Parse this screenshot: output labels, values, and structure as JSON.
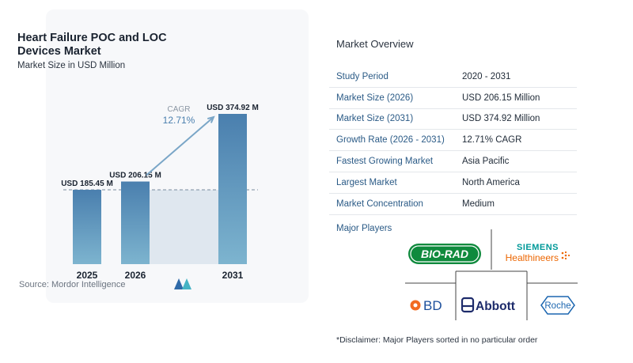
{
  "header": {
    "title": "Heart Failure POC and LOC Devices Market",
    "subtitle": "Market Size in USD Million",
    "source": "Source: Mordor Intelligence",
    "cagr_label": "CAGR",
    "cagr_value": "12.71%"
  },
  "chart_data": {
    "type": "bar",
    "title": "Heart Failure POC and LOC Devices Market",
    "subtitle": "Market Size in USD Million",
    "categories": [
      "2025",
      "2026",
      "2031"
    ],
    "values": [
      185.45,
      206.15,
      374.92
    ],
    "value_labels": [
      "USD 185.45 M",
      "USD 206.15 M",
      "USD 374.92 M"
    ],
    "ylim": [
      0,
      400
    ],
    "grid": false,
    "colors": {
      "bar_top": "#4a7fae",
      "bar_bottom": "#7db4cf",
      "band": "#dfe7ef",
      "dash": "#7a8d9e",
      "arrow": "#7aa6c7"
    }
  },
  "overview": {
    "title": "Market Overview",
    "rows": [
      {
        "key": "Study Period",
        "value": "2020 - 2031"
      },
      {
        "key": "Market Size (2026)",
        "value": "USD 206.15 Million"
      },
      {
        "key": "Market Size (2031)",
        "value": "USD 374.92 Million"
      },
      {
        "key": "Growth Rate (2026 - 2031)",
        "value": "12.71% CAGR"
      },
      {
        "key": "Fastest Growing Market",
        "value": "Asia Pacific"
      },
      {
        "key": "Largest Market",
        "value": "North America"
      },
      {
        "key": "Market Concentration",
        "value": "Medium"
      }
    ]
  },
  "players": {
    "title": "Major Players",
    "logos": [
      {
        "name": "BIO-RAD",
        "icon": "bio-rad-logo"
      },
      {
        "name": "SIEMENS",
        "sub": "Healthineers",
        "icon": "siemens-healthineers-logo"
      },
      {
        "name": "BD",
        "icon": "bd-logo"
      },
      {
        "name": "Abbott",
        "icon": "abbott-logo"
      },
      {
        "name": "Roche",
        "icon": "roche-logo"
      }
    ],
    "disclaimer": "*Disclaimer: Major Players sorted in no particular order"
  }
}
